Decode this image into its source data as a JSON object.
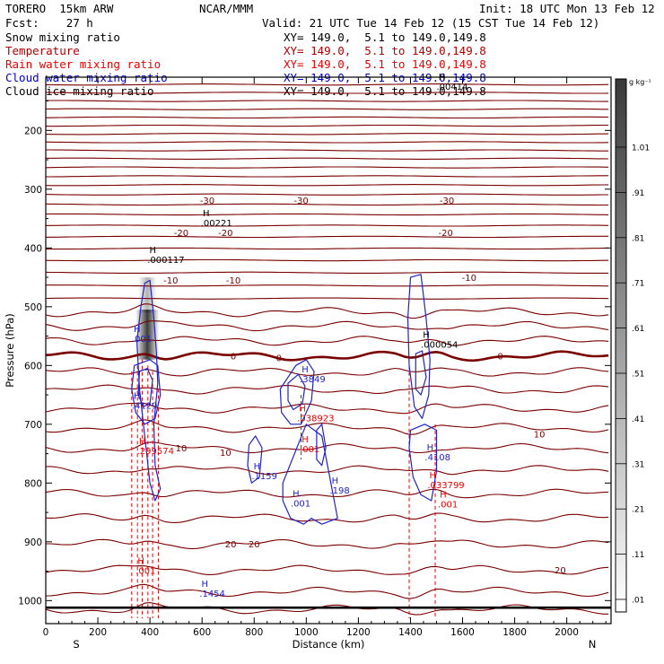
{
  "header": {
    "model": "TORERO  15km ARW",
    "center": "NCAR/MMM",
    "init": "Init: 18 UTC Mon 13 Feb 12",
    "fcst": "Fcst:    27 h",
    "valid": "Valid: 21 UTC Tue 14 Feb 12 (15 CST Tue 14 Feb 12)",
    "fields": [
      {
        "name": "Snow mixing ratio",
        "color": "#000000",
        "xy": "XY= 149.0,  5.1 to 149.0,149.8"
      },
      {
        "name": "Temperature",
        "color": "#b00000",
        "xy": "XY= 149.0,  5.1 to 149.0,149.8"
      },
      {
        "name": "Rain water mixing ratio",
        "color": "#ee0000",
        "xy": "XY= 149.0,  5.1 to 149.0,149.8"
      },
      {
        "name": "Cloud water mixing ratio",
        "color": "#0000cc",
        "xy": "XY= 149.0,  5.1 to 149.0,149.8"
      },
      {
        "name": "Cloud ice mixing ratio",
        "color": "#000000",
        "xy": "XY= 149.0,  5.1 to 149.0,149.8"
      }
    ]
  },
  "chart_data": {
    "type": "cross-section",
    "xlabel": "Distance (km)",
    "ylabel": "Pressure (hPa)",
    "xlim": [
      0,
      2170
    ],
    "ylim": [
      1030,
      85
    ],
    "x_ticks": [
      0,
      200,
      400,
      600,
      800,
      1000,
      1200,
      1400,
      1600,
      1800,
      2000
    ],
    "y_ticks": [
      200,
      300,
      400,
      500,
      600,
      700,
      800,
      900,
      1000
    ],
    "x_end_labels": {
      "left": "S",
      "right": "N"
    },
    "colorbar": {
      "unit": "g kg⁻¹",
      "ticks": [
        ".01",
        ".11",
        ".21",
        ".31",
        ".41",
        ".51",
        ".61",
        ".71",
        ".81",
        ".91",
        "1.01"
      ]
    },
    "temperature_contour_labels": [
      {
        "text": "-30",
        "x": 620,
        "p": 319
      },
      {
        "text": "-30",
        "x": 980,
        "p": 319
      },
      {
        "text": "-30",
        "x": 1540,
        "p": 319
      },
      {
        "text": "-20",
        "x": 520,
        "p": 374
      },
      {
        "text": "-20",
        "x": 690,
        "p": 374
      },
      {
        "text": "-20",
        "x": 1535,
        "p": 374
      },
      {
        "text": "-10",
        "x": 480,
        "p": 455
      },
      {
        "text": "-10",
        "x": 720,
        "p": 455
      },
      {
        "text": "-10",
        "x": 1625,
        "p": 451
      },
      {
        "text": "0",
        "x": 720,
        "p": 584
      },
      {
        "text": "0",
        "x": 895,
        "p": 587
      },
      {
        "text": "0",
        "x": 1745,
        "p": 584
      },
      {
        "text": "10",
        "x": 520,
        "p": 741
      },
      {
        "text": "10",
        "x": 690,
        "p": 748
      },
      {
        "text": "10",
        "x": 1895,
        "p": 717
      },
      {
        "text": "20",
        "x": 710,
        "p": 904
      },
      {
        "text": "20",
        "x": 800,
        "p": 904
      },
      {
        "text": "20",
        "x": 1975,
        "p": 948
      }
    ],
    "maxima": [
      {
        "field": "snow",
        "text": ".00221",
        "x": 595,
        "p": 358
      },
      {
        "field": "snow",
        "text": ".000117",
        "x": 390,
        "p": 421
      },
      {
        "field": "snow",
        "text": ".000054",
        "x": 1440,
        "p": 565
      },
      {
        "field": "snow",
        "text": ".00414",
        "x": 1500,
        "p": 126
      },
      {
        "field": "cloud_water",
        "text": ".001",
        "x": 330,
        "p": 555
      },
      {
        "field": "cloud_water",
        "text": ".4129",
        "x": 330,
        "p": 669
      },
      {
        "field": "cloud_water",
        "text": ".3849",
        "x": 975,
        "p": 624
      },
      {
        "field": "cloud_water",
        "text": ".1159",
        "x": 790,
        "p": 789
      },
      {
        "field": "cloud_water",
        "text": ".198",
        "x": 1090,
        "p": 813
      },
      {
        "field": "cloud_water",
        "text": ".001",
        "x": 940,
        "p": 835
      },
      {
        "field": "cloud_water",
        "text": ".4108",
        "x": 1455,
        "p": 757
      },
      {
        "field": "cloud_water",
        "text": ".1454",
        "x": 590,
        "p": 989
      },
      {
        "field": "rain",
        "text": ".299574",
        "x": 350,
        "p": 746
      },
      {
        "field": "rain",
        "text": ".038923",
        "x": 965,
        "p": 690
      },
      {
        "field": "rain",
        "text": ".001",
        "x": 975,
        "p": 743
      },
      {
        "field": "rain",
        "text": ".033799",
        "x": 1465,
        "p": 804
      },
      {
        "field": "rain",
        "text": ".001",
        "x": 1505,
        "p": 837
      },
      {
        "field": "rain",
        "text": ".001",
        "x": 345,
        "p": 950
      }
    ]
  }
}
